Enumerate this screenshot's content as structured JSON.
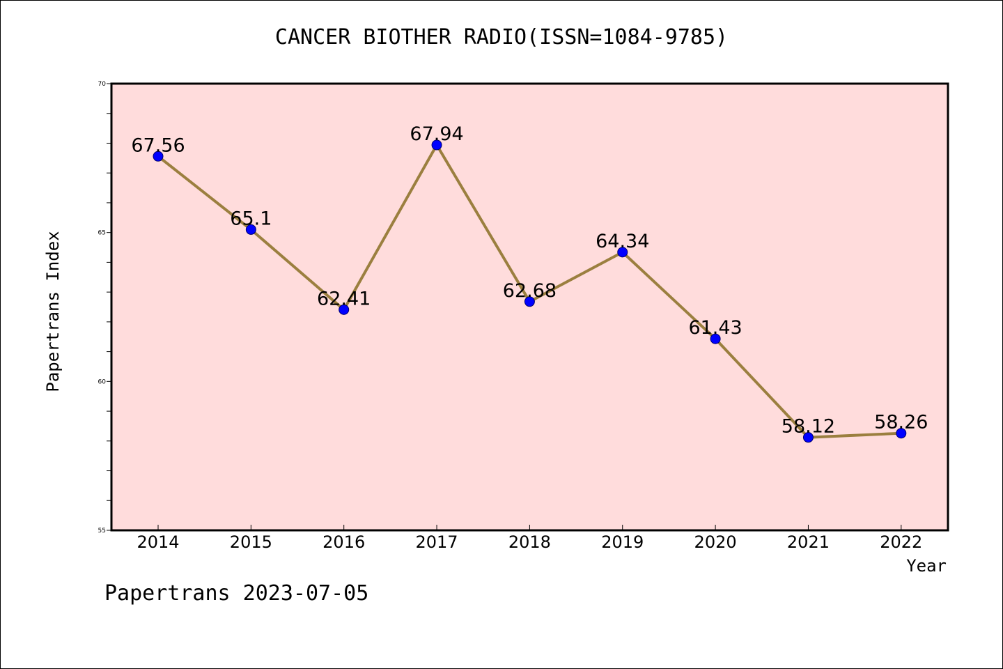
{
  "chart_data": {
    "type": "line",
    "title": "CANCER BIOTHER RADIO(ISSN=1084-9785)",
    "xlabel": "Year",
    "ylabel": "Papertrans Index",
    "categories": [
      "2014",
      "2015",
      "2016",
      "2017",
      "2018",
      "2019",
      "2020",
      "2021",
      "2022"
    ],
    "series": [
      {
        "values": [
          67.56,
          65.1,
          62.41,
          67.94,
          62.68,
          64.34,
          61.43,
          58.12,
          58.26
        ],
        "labels": [
          "67.56",
          "65.1",
          "62.41",
          "67.94",
          "62.68",
          "64.34",
          "61.43",
          "58.12",
          "58.26"
        ],
        "line_color": "#9b7f3f",
        "marker_color": "#0000ff"
      }
    ],
    "ylim": [
      55,
      70
    ],
    "yticks": [
      "55",
      "60",
      "65",
      "70"
    ],
    "plot_background": "#ffdcdc",
    "grid": false,
    "legend": "none"
  },
  "footer": {
    "text": "Papertrans 2023-07-05"
  }
}
